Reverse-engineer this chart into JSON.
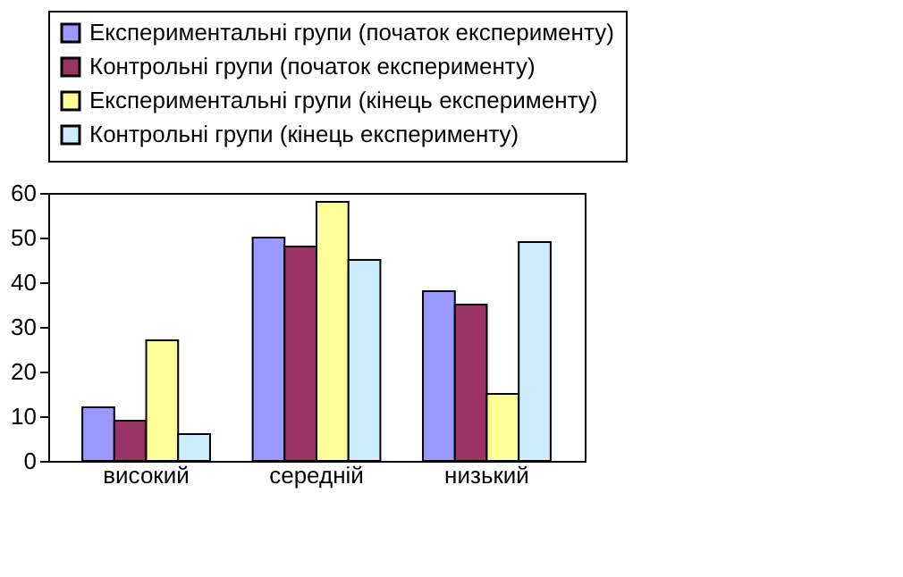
{
  "chart_data": {
    "type": "bar",
    "categories": [
      "високий",
      "середній",
      "низький"
    ],
    "series": [
      {
        "name": "Експериментальні групи (початок експерименту)",
        "color": "#9999ff",
        "values": [
          12,
          50,
          38
        ]
      },
      {
        "name": "Контрольні групи (початок експерименту)",
        "color": "#993366",
        "values": [
          9,
          48,
          35
        ]
      },
      {
        "name": "Експериментальні групи (кінець експерименту)",
        "color": "#ffff99",
        "values": [
          27,
          58,
          15
        ]
      },
      {
        "name": "Контрольні групи (кінець експерименту)",
        "color": "#ccecff",
        "values": [
          6,
          45,
          49
        ]
      }
    ],
    "ylim": [
      0,
      60
    ],
    "yticks": [
      0,
      10,
      20,
      30,
      40,
      50,
      60
    ],
    "grid": false,
    "legend": "top"
  }
}
